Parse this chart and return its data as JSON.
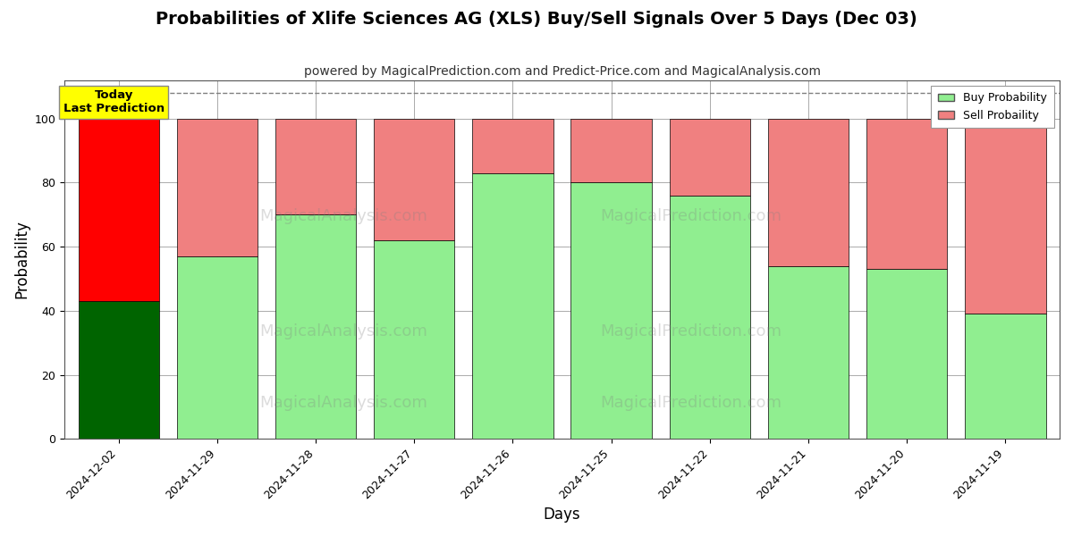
{
  "title": "Probabilities of Xlife Sciences AG (XLS) Buy/Sell Signals Over 5 Days (Dec 03)",
  "subtitle": "powered by MagicalPrediction.com and Predict-Price.com and MagicalAnalysis.com",
  "xlabel": "Days",
  "ylabel": "Probability",
  "categories": [
    "2024-12-02",
    "2024-11-29",
    "2024-11-28",
    "2024-11-27",
    "2024-11-26",
    "2024-11-25",
    "2024-11-22",
    "2024-11-21",
    "2024-11-20",
    "2024-11-19"
  ],
  "buy_values": [
    43,
    57,
    70,
    62,
    83,
    80,
    76,
    54,
    53,
    39
  ],
  "sell_values": [
    57,
    43,
    30,
    38,
    17,
    20,
    24,
    46,
    47,
    61
  ],
  "today_buy_color": "#006400",
  "today_sell_color": "#ff0000",
  "buy_color": "#90EE90",
  "sell_color": "#F08080",
  "today_label_bg": "#ffff00",
  "today_label_text": "Today\nLast Prediction",
  "legend_buy": "Buy Probability",
  "legend_sell": "Sell Probaility",
  "ylim": [
    0,
    112
  ],
  "dashed_line_y": 108,
  "bar_edge_color": "#000000",
  "bar_edge_width": 0.5,
  "grid_color": "#aaaaaa",
  "title_fontsize": 14,
  "subtitle_fontsize": 10,
  "axis_label_fontsize": 12,
  "tick_fontsize": 9,
  "bar_width": 0.82
}
